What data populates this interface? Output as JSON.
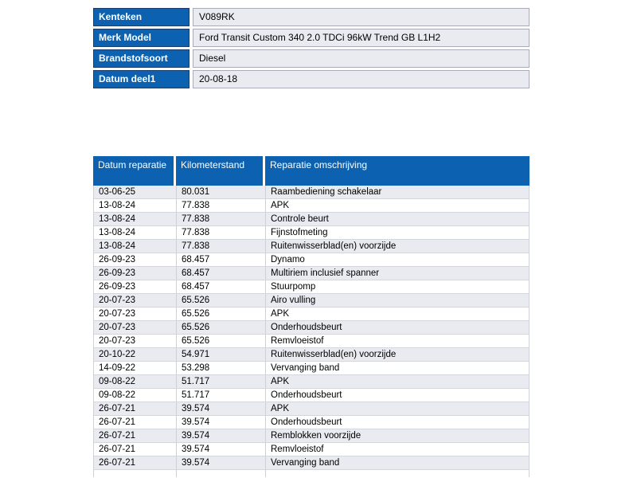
{
  "colors": {
    "header_blue": "#0C62B0",
    "navy_border": "#1A3C6B",
    "alt_row": "#EAEAF1",
    "grid_border": "#CDD0D6",
    "value_cell_border": "#A9ACB8",
    "header_text": "#ffffff",
    "body_text": "#000000"
  },
  "vehicle_info": {
    "rows": [
      {
        "label": "Kenteken",
        "value": "V089RK"
      },
      {
        "label": "Merk Model",
        "value": "Ford Transit Custom 340 2.0 TDCi 96kW Trend GB L1H2"
      },
      {
        "label": "Brandstofsoort",
        "value": "Diesel"
      },
      {
        "label": "Datum deel1",
        "value": "20-08-18"
      }
    ]
  },
  "repair_history": {
    "columns": [
      "Datum reparatie",
      "Kilometerstand",
      "Reparatie omschrijving"
    ],
    "rows": [
      [
        "03-06-25",
        "80.031",
        "Raambediening schakelaar"
      ],
      [
        "13-08-24",
        "77.838",
        "APK"
      ],
      [
        "13-08-24",
        "77.838",
        "Controle beurt"
      ],
      [
        "13-08-24",
        "77.838",
        "Fijnstofmeting"
      ],
      [
        "13-08-24",
        "77.838",
        "Ruitenwisserblad(en) voorzijde"
      ],
      [
        "26-09-23",
        "68.457",
        "Dynamo"
      ],
      [
        "26-09-23",
        "68.457",
        "Multiriem inclusief spanner"
      ],
      [
        "26-09-23",
        "68.457",
        "Stuurpomp"
      ],
      [
        "20-07-23",
        "65.526",
        "Airo vulling"
      ],
      [
        "20-07-23",
        "65.526",
        "APK"
      ],
      [
        "20-07-23",
        "65.526",
        "Onderhoudsbeurt"
      ],
      [
        "20-07-23",
        "65.526",
        "Remvloeistof"
      ],
      [
        "20-10-22",
        "54.971",
        "Ruitenwisserblad(en) voorzijde"
      ],
      [
        "14-09-22",
        "53.298",
        "Vervanging band"
      ],
      [
        "09-08-22",
        "51.717",
        "APK"
      ],
      [
        "09-08-22",
        "51.717",
        "Onderhoudsbeurt"
      ],
      [
        "26-07-21",
        "39.574",
        "APK"
      ],
      [
        "26-07-21",
        "39.574",
        "Onderhoudsbeurt"
      ],
      [
        "26-07-21",
        "39.574",
        "Remblokken voorzijde"
      ],
      [
        "26-07-21",
        "39.574",
        "Remvloeistof"
      ],
      [
        "26-07-21",
        "39.574",
        "Vervanging band"
      ]
    ]
  }
}
